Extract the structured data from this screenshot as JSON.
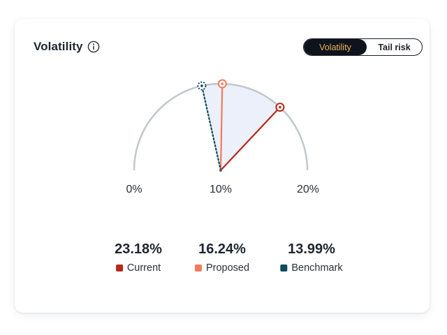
{
  "card": {
    "title": "Volatility",
    "info_icon": "info-icon"
  },
  "toggle": {
    "options": [
      "Volatility",
      "Tail risk"
    ],
    "selected": "Volatility"
  },
  "colors": {
    "current": "#b5291c",
    "proposed": "#ef7a5d",
    "benchmark": "#0d4a5c",
    "arc": "#c2c7ce",
    "fill": "#ecf0fa",
    "toggle_active_bg": "#0f131c",
    "toggle_active_text": "#e9b35b"
  },
  "chart_data": {
    "type": "gauge",
    "title": "Volatility",
    "scale_ticks": [
      "0%",
      "10%",
      "20%"
    ],
    "series": [
      {
        "name": "Current",
        "value": 23.18,
        "display": "23.18%",
        "color": "#b5291c"
      },
      {
        "name": "Proposed",
        "value": 16.24,
        "display": "16.24%",
        "color": "#ef7a5d"
      },
      {
        "name": "Benchmark",
        "value": 13.99,
        "display": "13.99%",
        "color": "#0d4a5c"
      }
    ]
  }
}
